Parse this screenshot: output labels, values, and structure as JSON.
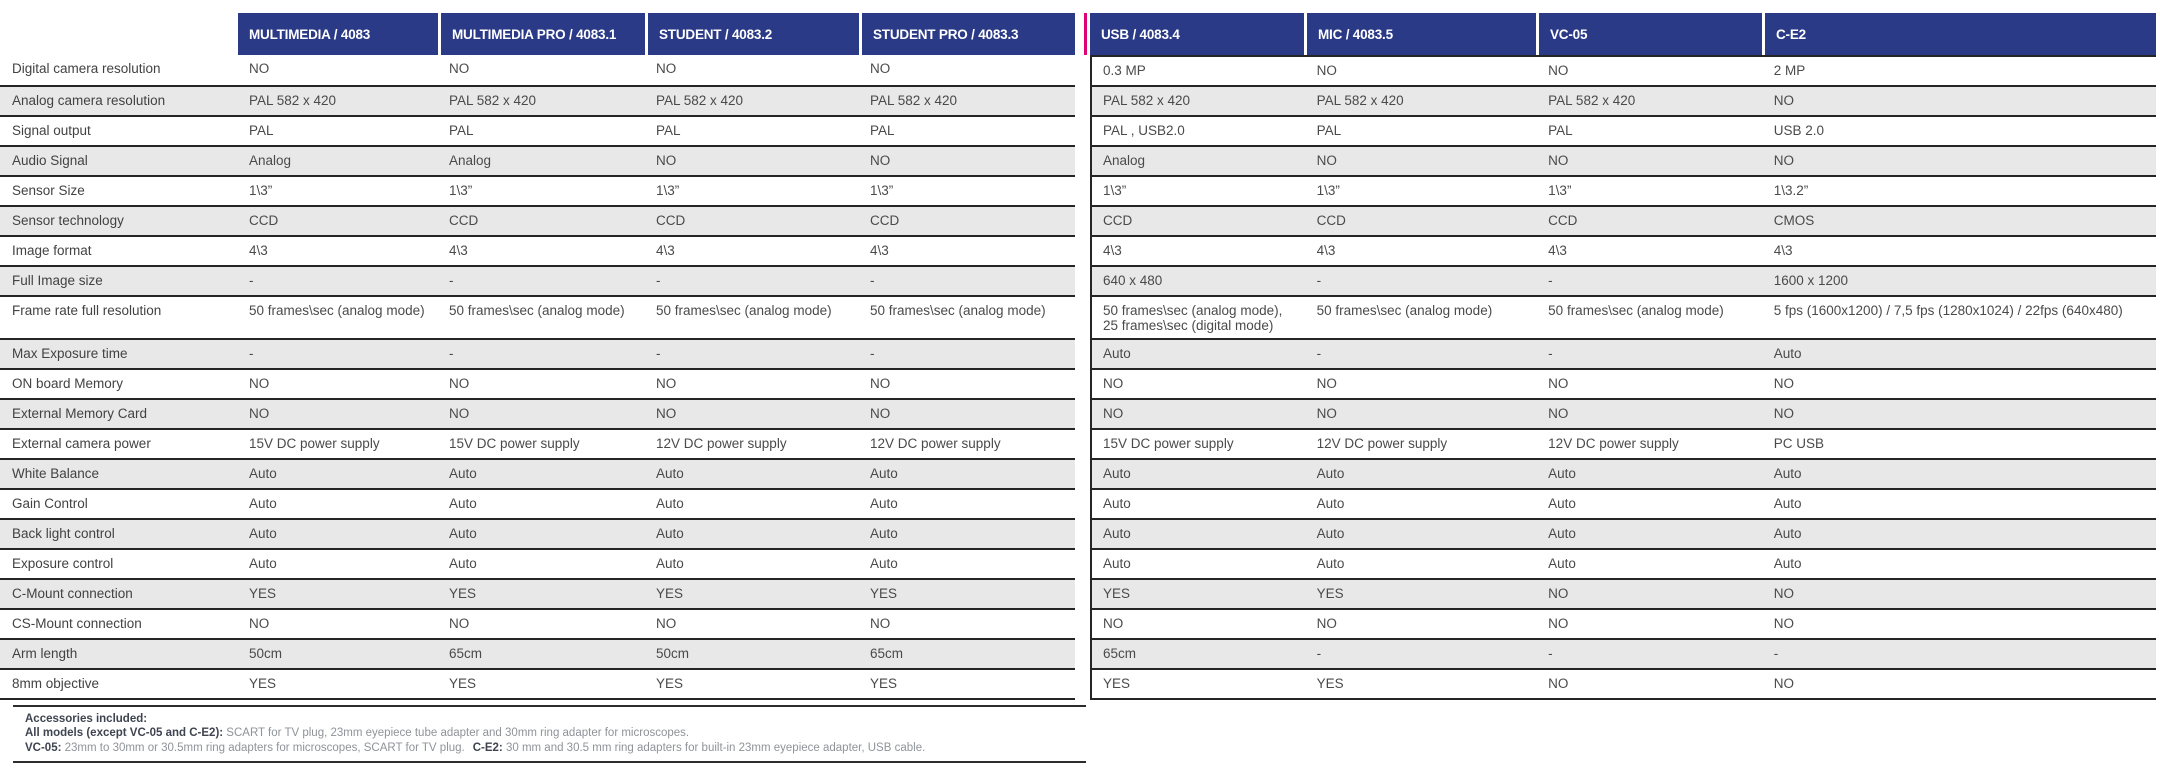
{
  "colors": {
    "header_bg": "#2b3a86",
    "split_divider_pink": "#de0473",
    "row_alt_bg": "#e8e8e8",
    "row_line": "#252525",
    "value_text": "#4a4a4a",
    "header_text": "#ffffff",
    "footnote_bold_text": "#3e4450",
    "footnote_text": "#8f9399"
  },
  "table": {
    "columns": [
      "MULTIMEDIA / 4083",
      "MULTIMEDIA PRO / 4083.1",
      "STUDENT / 4083.2",
      "STUDENT PRO / 4083.3",
      "USB / 4083.4",
      "MIC / 4083.5",
      "VC-05",
      "C-E2"
    ],
    "rows": [
      {
        "label": "Digital camera resolution",
        "values": [
          "NO",
          "NO",
          "NO",
          "NO",
          "0.3 MP",
          "NO",
          "NO",
          "2 MP"
        ]
      },
      {
        "label": "Analog camera resolution",
        "values": [
          "PAL 582 x 420",
          "PAL 582 x 420",
          "PAL 582 x 420",
          "PAL 582 x 420",
          "PAL 582 x 420",
          "PAL 582 x 420",
          "PAL 582 x 420",
          "NO"
        ]
      },
      {
        "label": "Signal output",
        "values": [
          "PAL",
          "PAL",
          "PAL",
          "PAL",
          "PAL , USB2.0",
          "PAL",
          "PAL",
          "USB 2.0"
        ]
      },
      {
        "label": "Audio Signal",
        "values": [
          "Analog",
          "Analog",
          "NO",
          "NO",
          "Analog",
          "NO",
          "NO",
          "NO"
        ]
      },
      {
        "label": "Sensor Size",
        "values": [
          "1\\3”",
          "1\\3”",
          "1\\3”",
          "1\\3”",
          "1\\3”",
          "1\\3”",
          "1\\3”",
          "1\\3.2”"
        ]
      },
      {
        "label": "Sensor technology",
        "values": [
          "CCD",
          "CCD",
          "CCD",
          "CCD",
          "CCD",
          "CCD",
          "CCD",
          "CMOS"
        ]
      },
      {
        "label": "Image format",
        "values": [
          "4\\3",
          "4\\3",
          "4\\3",
          "4\\3",
          "4\\3",
          "4\\3",
          "4\\3",
          "4\\3"
        ]
      },
      {
        "label": "Full Image size",
        "values": [
          "-",
          "-",
          "-",
          "-",
          "640 x 480",
          "-",
          "-",
          "1600 x 1200"
        ]
      },
      {
        "label": "Frame rate full resolution",
        "values": [
          "50 frames\\sec (analog mode)",
          "50 frames\\sec (analog mode)",
          "50 frames\\sec (analog mode)",
          "50 frames\\sec (analog mode)",
          "50 frames\\sec (analog mode), 25 frames\\sec (digital mode)",
          "50 frames\\sec (analog mode)",
          "50 frames\\sec (analog mode)",
          "5 fps (1600x1200) / 7,5 fps (1280x1024) / 22fps (640x480)"
        ]
      },
      {
        "label": "Max Exposure time",
        "values": [
          "-",
          "-",
          "-",
          "-",
          "Auto",
          "-",
          "-",
          "Auto"
        ]
      },
      {
        "label": "ON board Memory",
        "values": [
          "NO",
          "NO",
          "NO",
          "NO",
          "NO",
          "NO",
          "NO",
          "NO"
        ]
      },
      {
        "label": "External Memory Card",
        "values": [
          "NO",
          "NO",
          "NO",
          "NO",
          "NO",
          "NO",
          "NO",
          "NO"
        ]
      },
      {
        "label": "External camera power",
        "values": [
          "15V DC power supply",
          "15V DC power supply",
          "12V DC power supply",
          "12V DC power supply",
          "15V DC power supply",
          "12V DC power supply",
          "12V DC power supply",
          "PC USB"
        ]
      },
      {
        "label": "White Balance",
        "values": [
          "Auto",
          "Auto",
          "Auto",
          "Auto",
          "Auto",
          "Auto",
          "Auto",
          "Auto"
        ]
      },
      {
        "label": "Gain Control",
        "values": [
          "Auto",
          "Auto",
          "Auto",
          "Auto",
          "Auto",
          "Auto",
          "Auto",
          "Auto"
        ]
      },
      {
        "label": "Back light control",
        "values": [
          "Auto",
          "Auto",
          "Auto",
          "Auto",
          "Auto",
          "Auto",
          "Auto",
          "Auto"
        ]
      },
      {
        "label": "Exposure control",
        "values": [
          "Auto",
          "Auto",
          "Auto",
          "Auto",
          "Auto",
          "Auto",
          "Auto",
          "Auto"
        ]
      },
      {
        "label": "C-Mount  connection",
        "values": [
          "YES",
          "YES",
          "YES",
          "YES",
          "YES",
          "YES",
          "NO",
          "NO"
        ]
      },
      {
        "label": "CS-Mount connection",
        "values": [
          "NO",
          "NO",
          "NO",
          "NO",
          "NO",
          "NO",
          "NO",
          "NO"
        ]
      },
      {
        "label": "Arm length",
        "values": [
          "50cm",
          "65cm",
          "50cm",
          "65cm",
          "65cm",
          "-",
          "-",
          "-"
        ]
      },
      {
        "label": "8mm objective",
        "values": [
          "YES",
          "YES",
          "YES",
          "YES",
          "YES",
          "YES",
          "NO",
          "NO"
        ]
      }
    ]
  },
  "footer": {
    "title": "Accessories included:",
    "lines": [
      {
        "segments": [
          {
            "text": "All models (except VC-05 and C-E2):",
            "bold": true
          },
          {
            "text": " SCART for TV plug, 23mm eyepiece tube adapter and 30mm ring adapter for microscopes.",
            "bold": false
          }
        ]
      },
      {
        "segments": [
          {
            "text": "VC-05:",
            "bold": true
          },
          {
            "text": " 23mm to 30mm or 30.5mm ring adapters for microscopes, SCART for TV plug.",
            "bold": false
          },
          {
            "text": "C-E2:",
            "bold": true
          },
          {
            "text": " 30 mm and 30.5 mm ring adapters for built-in 23mm eyepiece adapter, USB cable.",
            "bold": false
          }
        ]
      }
    ]
  }
}
